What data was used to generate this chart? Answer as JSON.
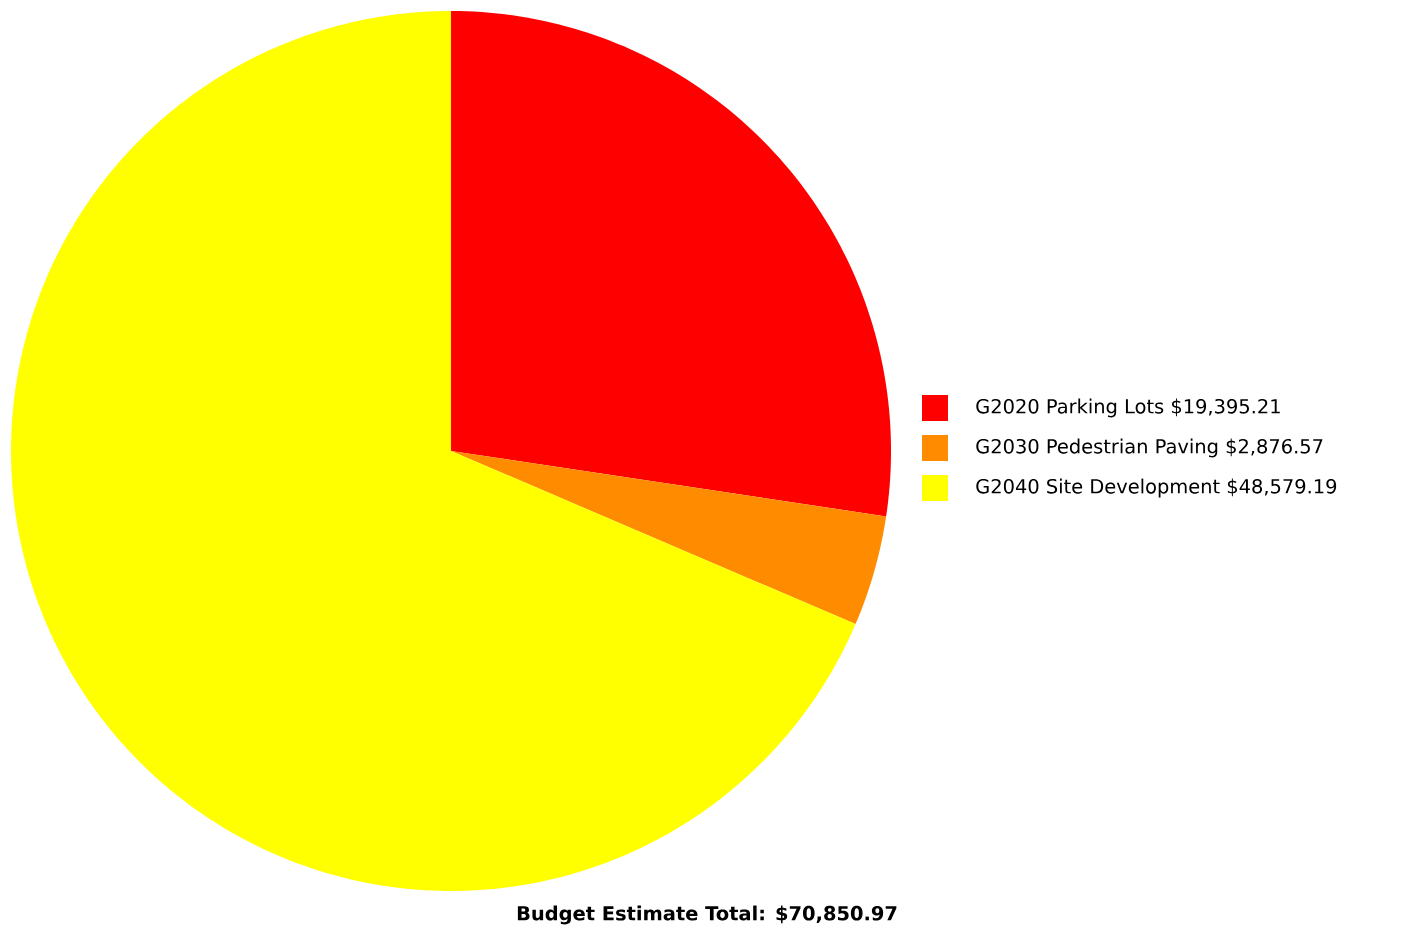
{
  "chart_data": {
    "type": "pie",
    "categories": [
      "G2020 Parking Lots $19,395.21",
      "G2030 Pedestrian Paving $2,876.57",
      "G2040 Site Development $48,579.19"
    ],
    "values": [
      19395.21,
      2876.57,
      48579.19
    ],
    "colors": [
      "#ff0000",
      "#ff8c00",
      "#ffff00"
    ],
    "legend": "right",
    "annotations": [
      "**Budget Estimate Total: $70,850.97**"
    ]
  }
}
